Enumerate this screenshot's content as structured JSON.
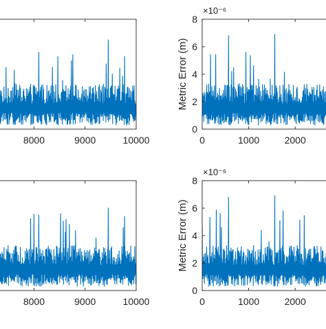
{
  "figure": {
    "background": "#ffffff",
    "line_color": "#0072BD",
    "axis_color": "#262626"
  },
  "chart_data": [
    {
      "type": "line",
      "panel": "top-left",
      "xlim": [
        7200,
        10000
      ],
      "ylim": [
        0,
        8
      ],
      "xticks": [
        8000,
        9000,
        10000
      ],
      "xtick_labels": [
        "8000",
        "9000",
        "10000"
      ],
      "yticks": [],
      "ylabel": "",
      "exponent_label": "",
      "series": [
        {
          "baseline": 1.3,
          "spread": 0.9,
          "min": 0.3,
          "spike_count": 32,
          "spike_max": 4.6,
          "notable_peaks": [
            {
              "x": 9450,
              "y": 6.5
            },
            {
              "x": 8100,
              "y": 5.6
            },
            {
              "x": 9780,
              "y": 5.3
            }
          ]
        }
      ]
    },
    {
      "type": "line",
      "panel": "top-right",
      "xlim": [
        0,
        2900
      ],
      "ylim": [
        0,
        8
      ],
      "xticks": [
        0,
        1000,
        2000
      ],
      "xtick_labels": [
        "0",
        "1000",
        "2000"
      ],
      "yticks": [
        0,
        2,
        4,
        6,
        8
      ],
      "ytick_labels": [
        "0",
        "2",
        "4",
        "6",
        "8"
      ],
      "ylabel": "Metric Error (m)",
      "exponent_label": "×10⁻⁶",
      "series": [
        {
          "baseline": 1.3,
          "spread": 0.9,
          "min": 0.3,
          "spike_count": 30,
          "spike_max": 4.8,
          "notable_peaks": [
            {
              "x": 560,
              "y": 6.8
            },
            {
              "x": 1560,
              "y": 6.9
            }
          ]
        }
      ]
    },
    {
      "type": "line",
      "panel": "bottom-left",
      "xlim": [
        7200,
        10000
      ],
      "ylim": [
        0,
        8
      ],
      "xticks": [
        8000,
        9000,
        10000
      ],
      "xtick_labels": [
        "8000",
        "9000",
        "10000"
      ],
      "yticks": [],
      "ylabel": "",
      "exponent_label": "",
      "series": [
        {
          "baseline": 1.3,
          "spread": 0.9,
          "min": 0.3,
          "spike_count": 32,
          "spike_max": 4.6,
          "notable_peaks": [
            {
              "x": 9450,
              "y": 6.0
            },
            {
              "x": 8100,
              "y": 5.5
            },
            {
              "x": 9780,
              "y": 5.4
            }
          ]
        }
      ]
    },
    {
      "type": "line",
      "panel": "bottom-right",
      "xlim": [
        0,
        2900
      ],
      "ylim": [
        0,
        8
      ],
      "xticks": [
        0,
        1000,
        2000
      ],
      "xtick_labels": [
        "0",
        "1000",
        "2000"
      ],
      "yticks": [
        0,
        2,
        4,
        6,
        8
      ],
      "ytick_labels": [
        "0",
        "2",
        "4",
        "6",
        "8"
      ],
      "ylabel": "Metric Error (m)",
      "exponent_label": "×10⁻⁶",
      "series": [
        {
          "baseline": 1.3,
          "spread": 0.9,
          "min": 0.3,
          "spike_count": 30,
          "spike_max": 4.8,
          "notable_peaks": [
            {
              "x": 560,
              "y": 6.8
            },
            {
              "x": 1560,
              "y": 6.9
            }
          ]
        }
      ]
    }
  ]
}
